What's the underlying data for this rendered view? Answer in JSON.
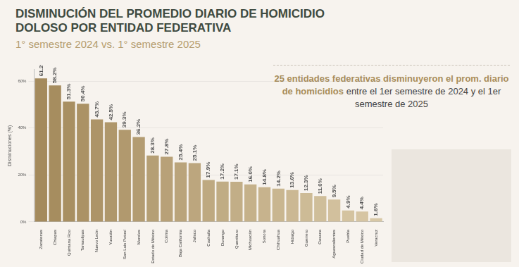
{
  "chart_data": {
    "type": "bar",
    "title": "DISMINUCIÓN DEL PROMEDIO DIARIO DE HOMICIDIO DOLOSO POR ENTIDAD FEDERATIVA",
    "subtitle": "1° semestre 2024 vs. 1° semestre 2025",
    "annotations": [
      "25 entidades federativas disminuyeron el prom. diario de homicidios",
      "entre el 1er semestre de 2024 y el 1er semestre de 2025"
    ],
    "y_label": "Disminuciones (%)",
    "categories": [
      "Zacatecas",
      "Chiapas",
      "Quintana Roo",
      "Tamaulipas",
      "Nuevo León",
      "Yucatán",
      "San Luis Potosí",
      "Morelos",
      "Estado de México",
      "Colima",
      "Baja California",
      "Jalisco",
      "Coahuila",
      "Durango",
      "Querétaro",
      "Michoacán",
      "Sonora",
      "Chihuahua",
      "Hidalgo",
      "Guerrero",
      "Oaxaca",
      "Aguascalientes",
      "Puebla",
      "Ciudad de México",
      "Veracruz"
    ],
    "values": [
      61.2,
      58.2,
      51.3,
      50.4,
      43.7,
      42.5,
      39.3,
      36.2,
      28.3,
      27.8,
      25.4,
      25.1,
      17.9,
      17.2,
      17.1,
      16.0,
      14.8,
      14.2,
      13.6,
      12.3,
      11.0,
      9.5,
      4.9,
      4.4,
      1.6
    ],
    "value_labels": [
      "61.2%",
      "58.2%",
      "51.3%",
      "50.4%",
      "43.7%",
      "42.5%",
      "39.3%",
      "36.2%",
      "28.3%",
      "27.8%",
      "25.4%",
      "25.1%",
      "17.9%",
      "17.2%",
      "17.1%",
      "16.0%",
      "14.8%",
      "14.2%",
      "13.6%",
      "12.3%",
      "11.0%",
      "9.5%",
      "4.9%",
      "4.4%",
      "1.6%"
    ],
    "colors": [
      "#a48a5c",
      "#a68d5f",
      "#a88f62",
      "#ab9265",
      "#ad9468",
      "#af976b",
      "#b1996e",
      "#b39c72",
      "#b59f75",
      "#b8a178",
      "#baa47b",
      "#bca67e",
      "#bea981",
      "#c0ac84",
      "#c2ae87",
      "#c5b18a",
      "#c7b38d",
      "#c9b690",
      "#cbb893",
      "#cdbb96",
      "#cfbe9a",
      "#d2c09d",
      "#d4c3a0",
      "#d6c5a3",
      "#d8c8a6"
    ],
    "ylim": [
      0,
      65
    ],
    "yticks": [
      {
        "value": 0,
        "label": "0%"
      },
      {
        "value": 20,
        "label": "20%"
      },
      {
        "value": 40,
        "label": "40%"
      },
      {
        "value": 60,
        "label": "60%"
      }
    ],
    "grid": true,
    "data_labels": true
  }
}
